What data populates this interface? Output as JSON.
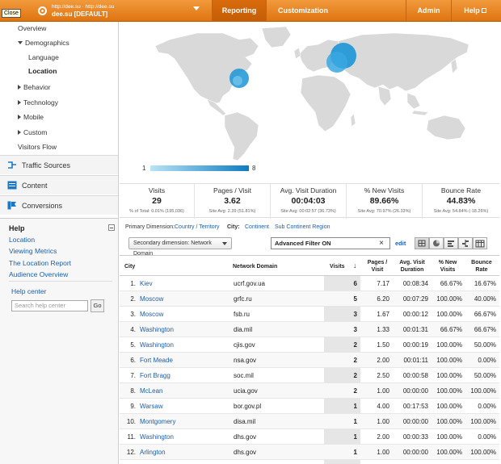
{
  "topbar": {
    "tooltip": "Close",
    "account_url": "http://dee.su · http://dee.su",
    "account_name": "dee.su [DEFAULT]",
    "tabs": [
      "Reporting",
      "Customization",
      "Admin",
      "Help"
    ],
    "active_tab": "Reporting"
  },
  "sidebar": {
    "items": [
      {
        "label": "Overview"
      },
      {
        "label": "Demographics"
      },
      {
        "label": "Language"
      },
      {
        "label": "Location"
      },
      {
        "label": "Behavior"
      },
      {
        "label": "Technology"
      },
      {
        "label": "Mobile"
      },
      {
        "label": "Custom"
      },
      {
        "label": "Visitors Flow"
      }
    ],
    "sections": [
      {
        "label": "Traffic Sources",
        "icon": "traffic-sources-icon"
      },
      {
        "label": "Content",
        "icon": "content-icon"
      },
      {
        "label": "Conversions",
        "icon": "conversions-icon"
      }
    ],
    "help": {
      "title": "Help",
      "links": [
        "Location",
        "Viewing Metrics",
        "The Location Report",
        "Audience Overview"
      ],
      "help_center": "Help center",
      "search_placeholder": "Search help center",
      "go_label": "Go"
    }
  },
  "map": {
    "legend_min": "1",
    "legend_max": "8",
    "bubble_color": "#1b95d6"
  },
  "scorecards": [
    {
      "label": "Visits",
      "value": "29",
      "sub": "% of Total: 0.01% (195,036)"
    },
    {
      "label": "Pages / Visit",
      "value": "3.62",
      "sub": "Site Avg: 2.39 (51.81%)"
    },
    {
      "label": "Avg. Visit Duration",
      "value": "00:04:03",
      "sub": "Site Avg: 00:02:57 (36.73%)"
    },
    {
      "label": "% New Visits",
      "value": "89.66%",
      "sub": "Site Avg: 70.97% (26.33%)"
    },
    {
      "label": "Bounce Rate",
      "value": "44.83%",
      "sub": "Site Avg: 54.84% (-18.26%)"
    }
  ],
  "primary_dimension": {
    "label": "Primary Dimension:",
    "options": [
      "Country / Territory",
      "City:",
      "Continent",
      "Sub Continent Region"
    ]
  },
  "controls": {
    "secondary_dimension": "Secondary dimension: Network Domain",
    "filter_value": "Advanced Filter ON",
    "edit_label": "edit"
  },
  "table": {
    "columns": [
      "City",
      "Network Domain",
      "Visits",
      "Pages / Visit",
      "Avg. Visit Duration",
      "% New Visits",
      "Bounce Rate"
    ],
    "rows": [
      {
        "n": "1.",
        "city": "Kiev",
        "domain": "ucrf.gov.ua",
        "visits": "6",
        "ppv": "7.17",
        "dur": "00:08:34",
        "new": "66.67%",
        "bounce": "16.67%"
      },
      {
        "n": "2.",
        "city": "Moscow",
        "domain": "grfc.ru",
        "visits": "5",
        "ppv": "6.20",
        "dur": "00:07:29",
        "new": "100.00%",
        "bounce": "40.00%"
      },
      {
        "n": "3.",
        "city": "Moscow",
        "domain": "fsb.ru",
        "visits": "3",
        "ppv": "1.67",
        "dur": "00:00:12",
        "new": "100.00%",
        "bounce": "66.67%"
      },
      {
        "n": "4.",
        "city": "Washington",
        "domain": "dia.mil",
        "visits": "3",
        "ppv": "1.33",
        "dur": "00:01:31",
        "new": "66.67%",
        "bounce": "66.67%"
      },
      {
        "n": "5.",
        "city": "Washington",
        "domain": "cjis.gov",
        "visits": "2",
        "ppv": "1.50",
        "dur": "00:00:19",
        "new": "100.00%",
        "bounce": "50.00%"
      },
      {
        "n": "6.",
        "city": "Fort Meade",
        "domain": "nsa.gov",
        "visits": "2",
        "ppv": "2.00",
        "dur": "00:01:11",
        "new": "100.00%",
        "bounce": "0.00%"
      },
      {
        "n": "7.",
        "city": "Fort Bragg",
        "domain": "soc.mil",
        "visits": "2",
        "ppv": "2.50",
        "dur": "00:00:58",
        "new": "100.00%",
        "bounce": "50.00%"
      },
      {
        "n": "8.",
        "city": "McLean",
        "domain": "ucia.gov",
        "visits": "2",
        "ppv": "1.00",
        "dur": "00:00:00",
        "new": "100.00%",
        "bounce": "100.00%"
      },
      {
        "n": "9.",
        "city": "Warsaw",
        "domain": "bor.gov.pl",
        "visits": "1",
        "ppv": "4.00",
        "dur": "00:17:53",
        "new": "100.00%",
        "bounce": "0.00%"
      },
      {
        "n": "10.",
        "city": "Montgomery",
        "domain": "disa.mil",
        "visits": "1",
        "ppv": "1.00",
        "dur": "00:00:00",
        "new": "100.00%",
        "bounce": "100.00%"
      },
      {
        "n": "11.",
        "city": "Washington",
        "domain": "dhs.gov",
        "visits": "1",
        "ppv": "2.00",
        "dur": "00:00:33",
        "new": "100.00%",
        "bounce": "0.00%"
      },
      {
        "n": "12.",
        "city": "Arlington",
        "domain": "dhs.gov",
        "visits": "1",
        "ppv": "1.00",
        "dur": "00:00:00",
        "new": "100.00%",
        "bounce": "100.00%"
      }
    ]
  }
}
